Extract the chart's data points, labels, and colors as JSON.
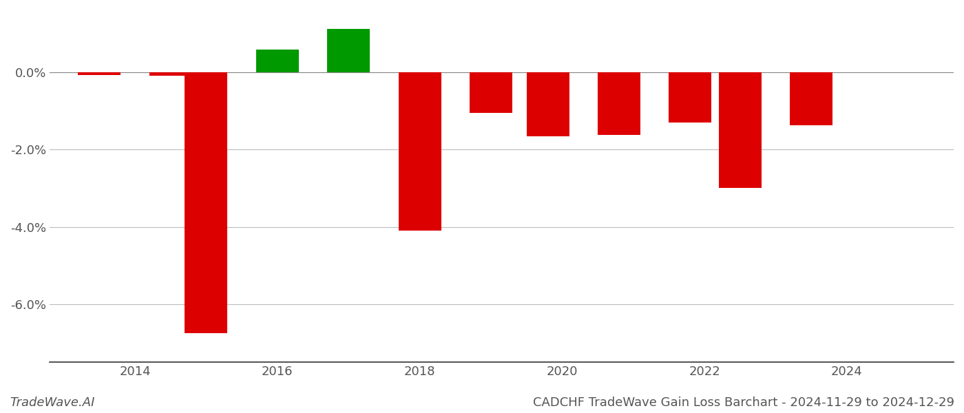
{
  "years": [
    2013.5,
    2014.5,
    2015.0,
    2016.0,
    2017.0,
    2018.0,
    2019.0,
    2019.8,
    2020.8,
    2021.8,
    2022.5,
    2023.5
  ],
  "values": [
    -0.07,
    -0.1,
    -6.75,
    0.58,
    1.12,
    -4.1,
    -1.05,
    -1.65,
    -1.62,
    -1.3,
    -3.0,
    -1.38
  ],
  "color_positive": "#009900",
  "color_negative": "#dd0000",
  "background_color": "#ffffff",
  "grid_color": "#bbbbbb",
  "axis_color": "#555555",
  "title": "CADCHF TradeWave Gain Loss Barchart - 2024-11-29 to 2024-12-29",
  "watermark": "TradeWave.AI",
  "ylim_min": -7.5,
  "ylim_max": 1.6,
  "bar_width": 0.6,
  "xticks": [
    2014,
    2016,
    2018,
    2020,
    2022,
    2024
  ],
  "xlim_min": 2012.8,
  "xlim_max": 2025.5,
  "title_fontsize": 13,
  "tick_fontsize": 13,
  "watermark_fontsize": 13
}
